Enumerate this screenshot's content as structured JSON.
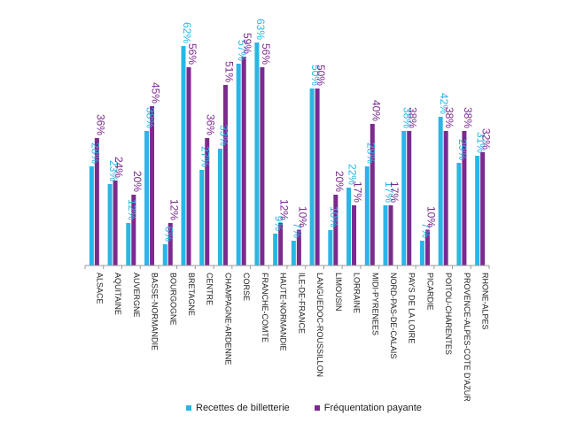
{
  "chart_data": {
    "type": "bar",
    "title": "",
    "xlabel": "",
    "ylabel": "",
    "ylim": [
      0,
      66
    ],
    "grid": false,
    "legend_position": "bottom",
    "categories": [
      "ALSACE",
      "AQUITAINE",
      "AUVERGNE",
      "BASSE-NORMANDIE",
      "BOURGOGNE",
      "BRETAGNE",
      "CENTRE",
      "CHAMPAGNE-ARDENNE",
      "CORSE",
      "FRANCHE-COMTE",
      "HAUTE-NORMANDIE",
      "ILE-DE-FRANCE",
      "LANGUEDOC-ROUSSILLON",
      "LIMOUSIN",
      "LORRAINE",
      "MIDI-PYRENEES",
      "NORD-PAS-DE-CALAIS",
      "PAYS DE LA LOIRE",
      "PICARDIE",
      "POITOU-CHARENTES",
      "PROVENCE-ALPES-COTE D'AZUR",
      "RHONE-ALPES"
    ],
    "series": [
      {
        "name": "Recettes de billetterie",
        "color": "#29b6e6",
        "values": [
          28,
          23,
          12,
          38,
          6,
          62,
          27,
          33,
          57,
          63,
          9,
          7,
          50,
          10,
          22,
          28,
          17,
          38,
          7,
          42,
          29,
          31
        ]
      },
      {
        "name": "Fréquentation payante",
        "color": "#7b2a8e",
        "values": [
          36,
          24,
          20,
          45,
          12,
          56,
          36,
          51,
          59,
          56,
          12,
          10,
          50,
          20,
          17,
          40,
          17,
          38,
          10,
          38,
          38,
          32
        ]
      }
    ]
  },
  "legend": {
    "item1": "Recettes de billetterie",
    "item2": "Fréquentation payante"
  }
}
